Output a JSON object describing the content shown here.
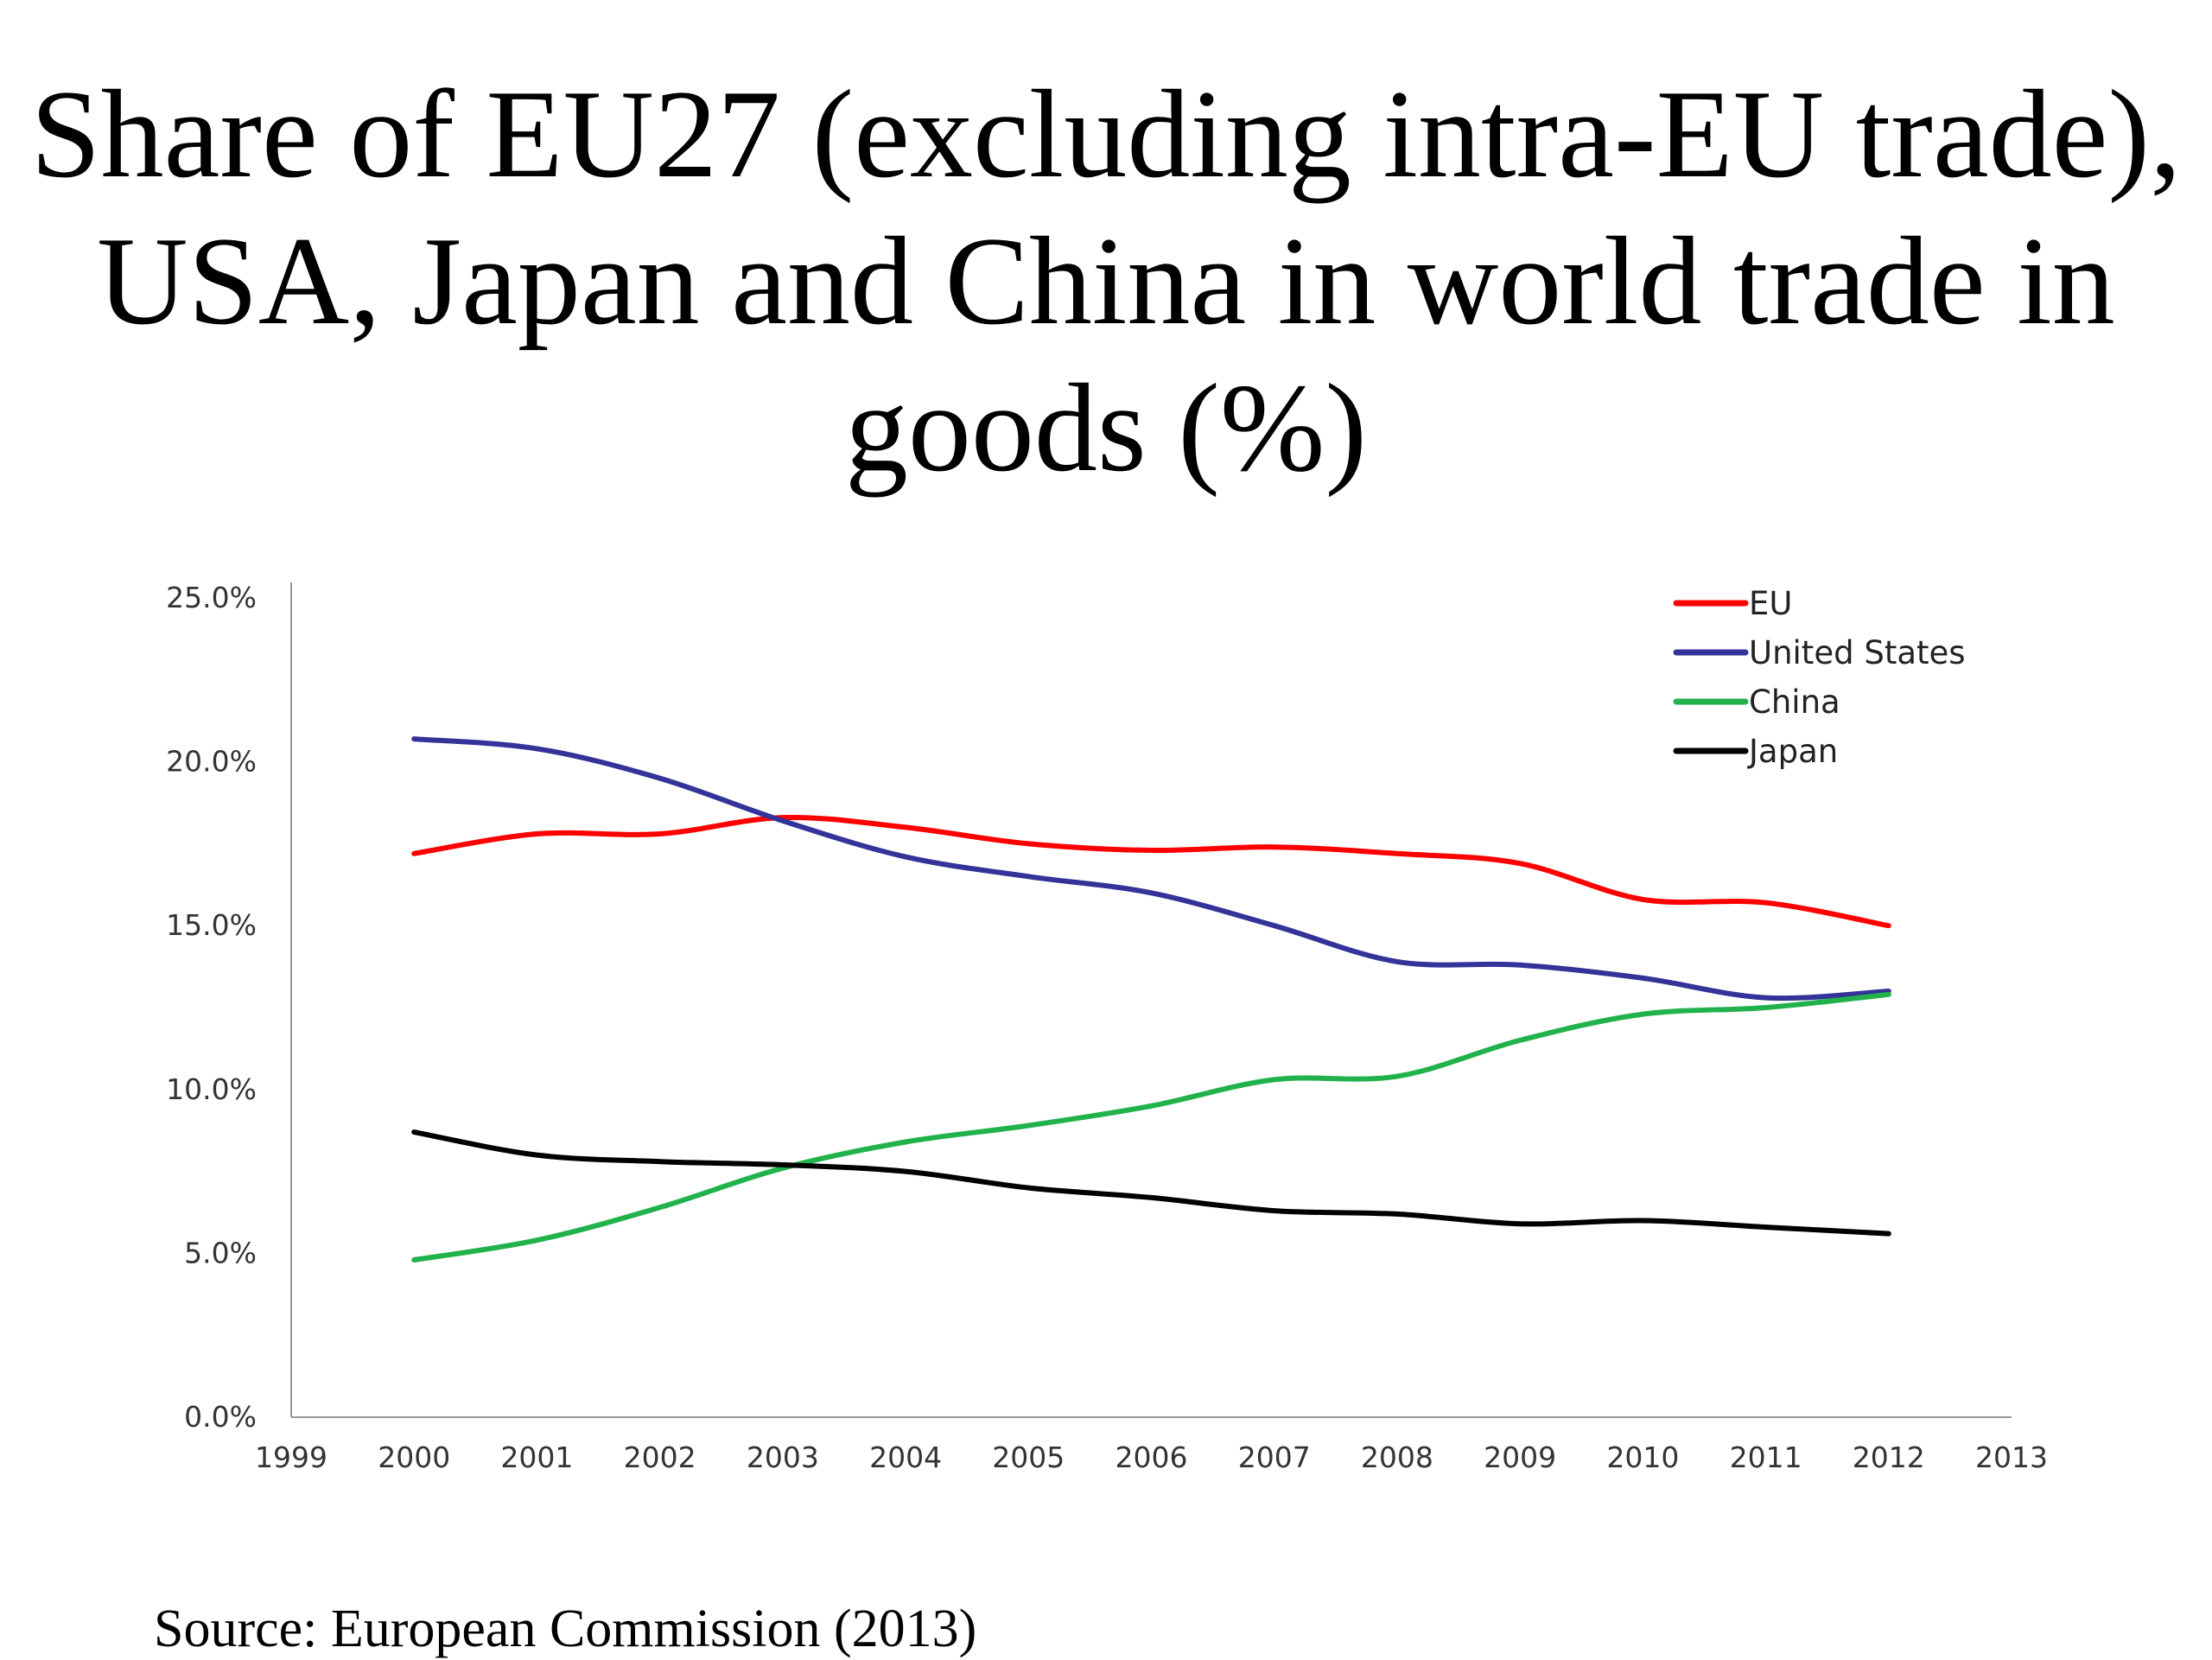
{
  "title_lines": [
    "Share of EU27 (excluding intra-EU trade),",
    "USA, Japan and China in world trade in",
    "goods (%)"
  ],
  "source": "Source: European Commission (2013)",
  "chart_data": {
    "type": "line",
    "title": "Share of EU27 (excluding intra-EU trade), USA, Japan and China in world trade in goods (%)",
    "xlabel": "",
    "ylabel": "",
    "x_ticks": [
      1999,
      2000,
      2001,
      2002,
      2003,
      2004,
      2005,
      2006,
      2007,
      2008,
      2009,
      2010,
      2011,
      2012,
      2013
    ],
    "xlim": [
      1999,
      2013
    ],
    "y_ticks": [
      "0.0%",
      "5.0%",
      "10.0%",
      "15.0%",
      "20.0%",
      "25.0%"
    ],
    "ylim": [
      0,
      25
    ],
    "grid": false,
    "legend_position": "top-right",
    "x": [
      2000,
      2001,
      2002,
      2003,
      2004,
      2005,
      2006,
      2007,
      2008,
      2009,
      2010,
      2011,
      2012
    ],
    "series": [
      {
        "name": "EU",
        "color": "#ff0000",
        "values": [
          17.2,
          17.8,
          17.8,
          18.3,
          18.0,
          17.5,
          17.3,
          17.4,
          17.2,
          16.9,
          15.8,
          15.7,
          15.0
        ]
      },
      {
        "name": "United States",
        "color": "#333399",
        "values": [
          20.7,
          20.4,
          19.5,
          18.2,
          17.1,
          16.5,
          16.0,
          15.0,
          13.9,
          13.8,
          13.4,
          12.8,
          13.0
        ]
      },
      {
        "name": "China",
        "color": "#22b24c",
        "values": [
          4.8,
          5.4,
          6.4,
          7.6,
          8.4,
          8.9,
          9.5,
          10.3,
          10.4,
          11.5,
          12.3,
          12.5,
          12.9
        ]
      },
      {
        "name": "Japan",
        "color": "#000000",
        "values": [
          8.7,
          8.0,
          7.8,
          7.7,
          7.5,
          7.0,
          6.7,
          6.3,
          6.2,
          5.9,
          6.0,
          5.8,
          5.6
        ]
      }
    ]
  }
}
